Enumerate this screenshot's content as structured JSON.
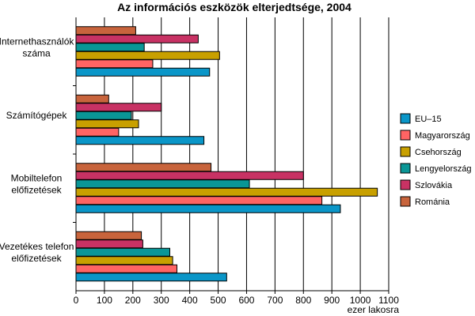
{
  "chart_data": {
    "type": "bar",
    "orientation": "horizontal",
    "title": "Az információs eszközök elterjedtsége, 2004",
    "xlabel": "ezer lakosra",
    "xlim": [
      0,
      1100
    ],
    "xticks": [
      0,
      100,
      200,
      300,
      400,
      500,
      600,
      700,
      800,
      900,
      1000,
      1100
    ],
    "grid": "vertical",
    "legend_position": "right",
    "categories": [
      [
        "Internethasználók",
        "száma"
      ],
      [
        "Számítógépek"
      ],
      [
        "Mobiltelefon",
        "előfizetések"
      ],
      [
        "Vezetékes telefon",
        "előfizetések"
      ]
    ],
    "series": [
      {
        "name": "EU–15",
        "color": "#0a96c8",
        "values": [
          470,
          450,
          930,
          530
        ]
      },
      {
        "name": "Magyarország",
        "color": "#ff6464",
        "values": [
          270,
          150,
          865,
          355
        ]
      },
      {
        "name": "Csehország",
        "color": "#c8a000",
        "values": [
          505,
          220,
          1060,
          340
        ]
      },
      {
        "name": "Lengyelország",
        "color": "#0a9696",
        "values": [
          240,
          195,
          610,
          330
        ]
      },
      {
        "name": "Szlovákia",
        "color": "#c83264",
        "values": [
          430,
          300,
          800,
          235
        ]
      },
      {
        "name": "Románia",
        "color": "#c8643c",
        "values": [
          210,
          115,
          475,
          230
        ]
      }
    ]
  }
}
